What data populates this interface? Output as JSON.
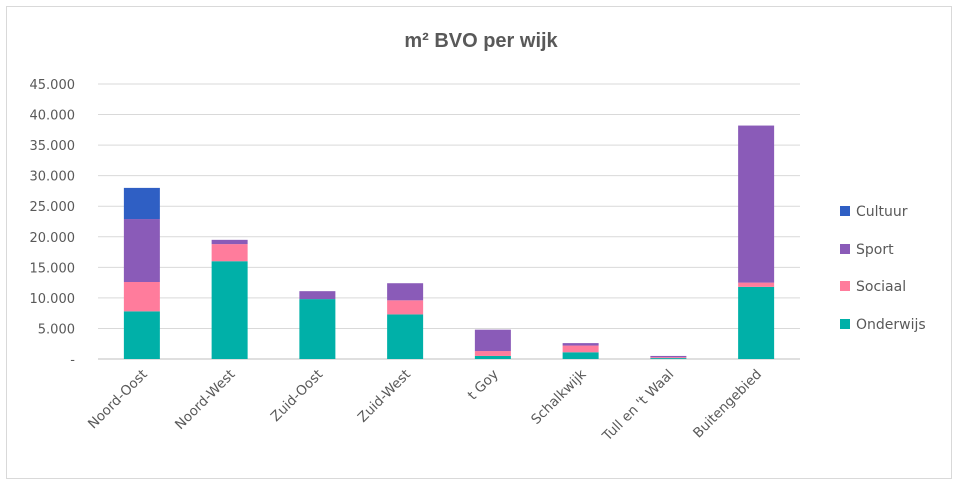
{
  "chart_data": {
    "type": "bar",
    "stacked": true,
    "title": "m² BVO per wijk",
    "xlabel": "",
    "ylabel": "",
    "ylim": [
      0,
      45000
    ],
    "y_ticks": [
      0,
      5000,
      10000,
      15000,
      20000,
      25000,
      30000,
      35000,
      40000,
      45000
    ],
    "y_tick_labels": [
      "-",
      "5.000",
      "10.000",
      "15.000",
      "20.000",
      "25.000",
      "30.000",
      "35.000",
      "40.000",
      "45.000"
    ],
    "grid": true,
    "legend_position": "right",
    "categories": [
      "Noord-Oost",
      "Noord-West",
      "Zuid-Oost",
      "Zuid-West",
      "t Goy",
      "Schalkwijk",
      "Tull en 't Waal",
      "Buitengebied"
    ],
    "series": [
      {
        "name": "Onderwijs",
        "color": "#00b0a8",
        "values": [
          7800,
          16000,
          9800,
          7300,
          500,
          1100,
          150,
          11800
        ]
      },
      {
        "name": "Sociaal",
        "color": "#ff7c9c",
        "values": [
          4800,
          2800,
          0,
          2300,
          800,
          1100,
          150,
          700
        ]
      },
      {
        "name": "Sport",
        "color": "#8a5bb8",
        "values": [
          10300,
          700,
          1300,
          2800,
          3500,
          400,
          200,
          25700
        ]
      },
      {
        "name": "Cultuur",
        "color": "#2f5fc4",
        "values": [
          5100,
          0,
          0,
          0,
          0,
          0,
          0,
          0
        ]
      }
    ],
    "legend_order": [
      "Cultuur",
      "Sport",
      "Sociaal",
      "Onderwijs"
    ]
  }
}
